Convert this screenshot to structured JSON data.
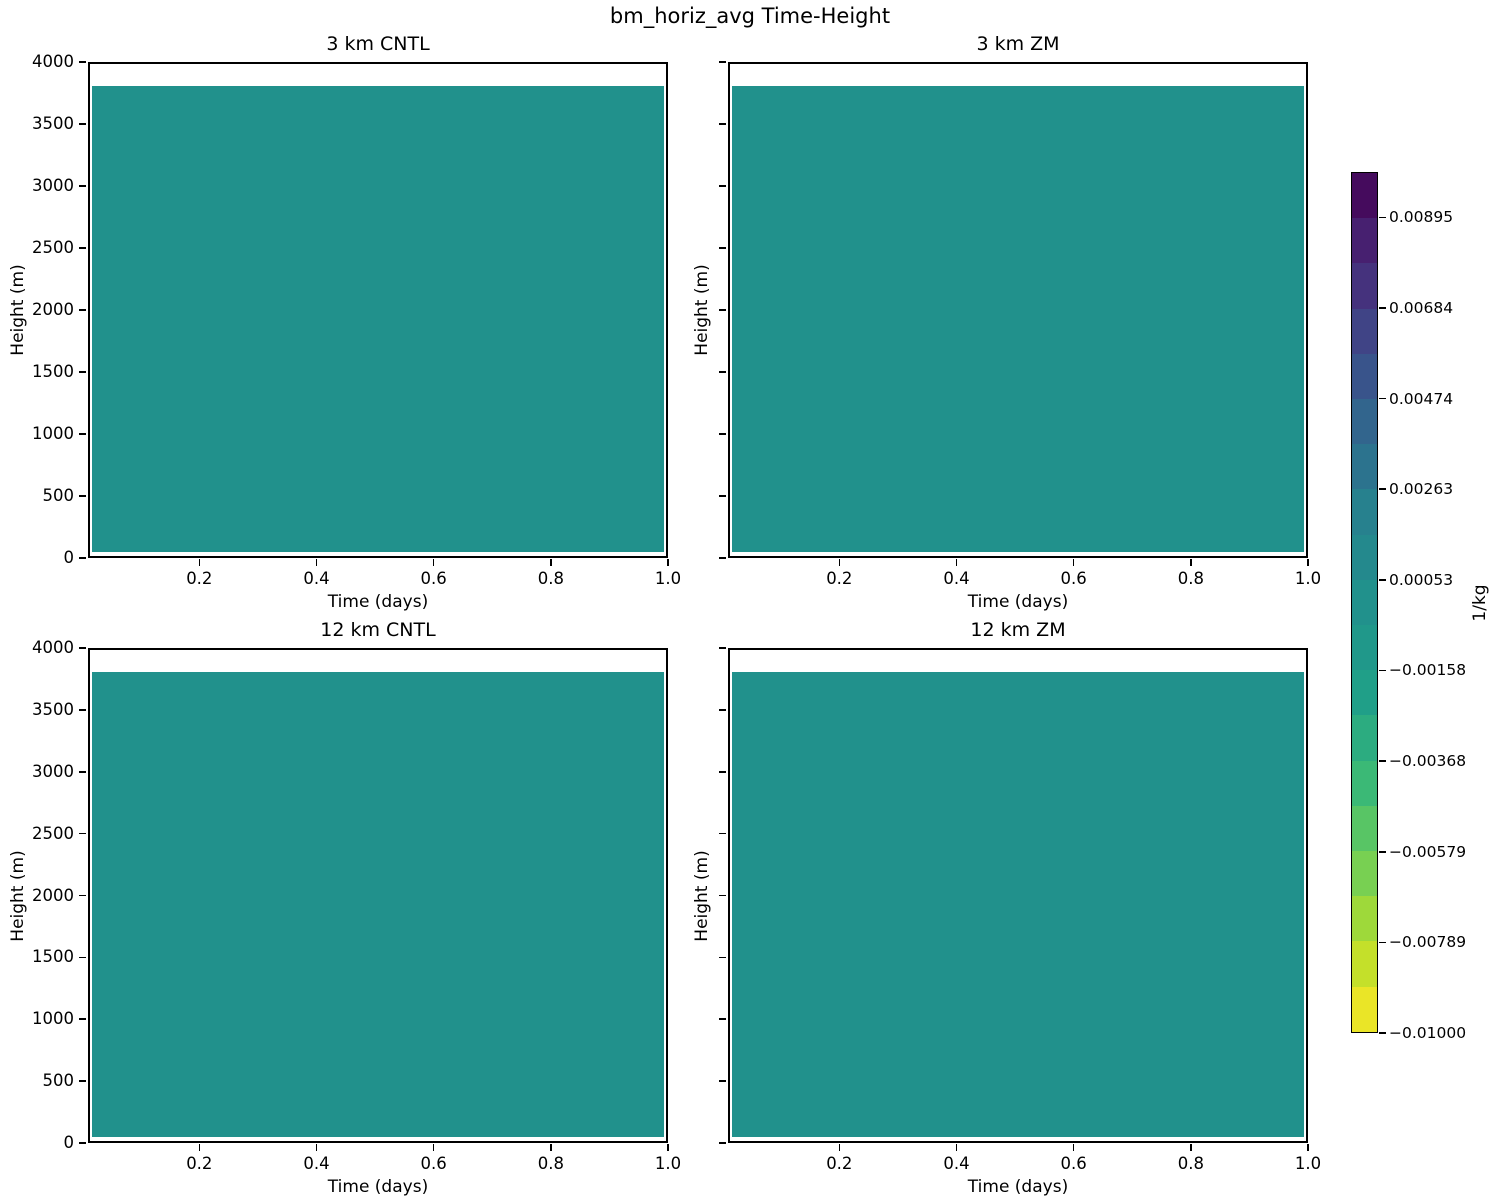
{
  "figure": {
    "title": "bm_horiz_avg Time-Height",
    "background": "#ffffff"
  },
  "fill_color": "#21918c",
  "panels": [
    {
      "id": "3km-cntl",
      "title": "3 km CNTL",
      "show_y_tick_labels": true
    },
    {
      "id": "3km-zm",
      "title": "3 km ZM",
      "show_y_tick_labels": false
    },
    {
      "id": "12km-cntl",
      "title": "12 km CNTL",
      "show_y_tick_labels": true
    },
    {
      "id": "12km-zm",
      "title": "12 km ZM",
      "show_y_tick_labels": false
    }
  ],
  "axes": {
    "x_label": "Time (days)",
    "y_label": "Height (m)",
    "x_ticks": [
      {
        "value": 0.2,
        "label": "0.2"
      },
      {
        "value": 0.4,
        "label": "0.4"
      },
      {
        "value": 0.6,
        "label": "0.6"
      },
      {
        "value": 0.8,
        "label": "0.8"
      },
      {
        "value": 1.0,
        "label": "1.0"
      }
    ],
    "y_ticks": [
      {
        "value": 0,
        "label": "0"
      },
      {
        "value": 500,
        "label": "500"
      },
      {
        "value": 1000,
        "label": "1000"
      },
      {
        "value": 1500,
        "label": "1500"
      },
      {
        "value": 2000,
        "label": "2000"
      },
      {
        "value": 2500,
        "label": "2500"
      },
      {
        "value": 3000,
        "label": "3000"
      },
      {
        "value": 3500,
        "label": "3500"
      },
      {
        "value": 4000,
        "label": "4000"
      }
    ]
  },
  "colorbar": {
    "label": "1/kg",
    "ticks": [
      "0.00895",
      "0.00684",
      "0.00474",
      "0.00263",
      "0.00053",
      "−0.00158",
      "−0.00368",
      "−0.00579",
      "−0.00789",
      "−0.01000"
    ],
    "segment_colors_top_to_bottom": [
      "#450b5d",
      "#472070",
      "#45327d",
      "#404486",
      "#39548b",
      "#32658d",
      "#2c738e",
      "#27818e",
      "#24898d",
      "#21918c",
      "#20988a",
      "#209f88",
      "#2cac80",
      "#3bb976",
      "#58c565",
      "#78d052",
      "#9ed93a",
      "#c4e02a",
      "#eae527"
    ]
  },
  "chart_data": {
    "type": "heatmap",
    "title": "bm_horiz_avg Time-Height",
    "variable": "bm_horiz_avg",
    "units": "1/kg",
    "xlabel": "Time (days)",
    "ylabel": "Height (m)",
    "xlim": [
      0.01,
      1.0
    ],
    "ylim": [
      0,
      4000
    ],
    "x_ticks": [
      0.2,
      0.4,
      0.6,
      0.8,
      1.0
    ],
    "y_ticks": [
      0,
      500,
      1000,
      1500,
      2000,
      2500,
      3000,
      3500,
      4000
    ],
    "colormap": "viridis reversed, discrete 19 intervals",
    "color_levels": [
      -0.01,
      -0.00895,
      -0.00789,
      -0.00684,
      -0.00579,
      -0.00474,
      -0.00368,
      -0.00263,
      -0.00158,
      -0.00053,
      0.00053,
      0.00158,
      0.00263,
      0.00368,
      0.00474,
      0.00579,
      0.00684,
      0.00789,
      0.00895,
      0.01
    ],
    "colorbar_ticks": [
      0.00895,
      0.00684,
      0.00474,
      0.00263,
      0.00053,
      -0.00158,
      -0.00368,
      -0.00579,
      -0.00789,
      -0.01
    ],
    "filled_band_top_m": 3840,
    "panels": [
      {
        "title": "3 km CNTL",
        "value": "uniform ≈ 0 (teal level band −0.00053 to 0.00053) from 0 to ~3840 m; blank above ~3840 m"
      },
      {
        "title": "3 km ZM",
        "value": "uniform ≈ 0 (teal level band −0.00053 to 0.00053) from 0 to ~3840 m; blank above ~3840 m"
      },
      {
        "title": "12 km CNTL",
        "value": "uniform ≈ 0 (teal level band −0.00053 to 0.00053) from 0 to ~3840 m; blank above ~3840 m"
      },
      {
        "title": "12 km ZM",
        "value": "uniform ≈ 0 (teal level band −0.00053 to 0.00053) from 0 to ~3840 m; blank above ~3840 m"
      }
    ]
  }
}
